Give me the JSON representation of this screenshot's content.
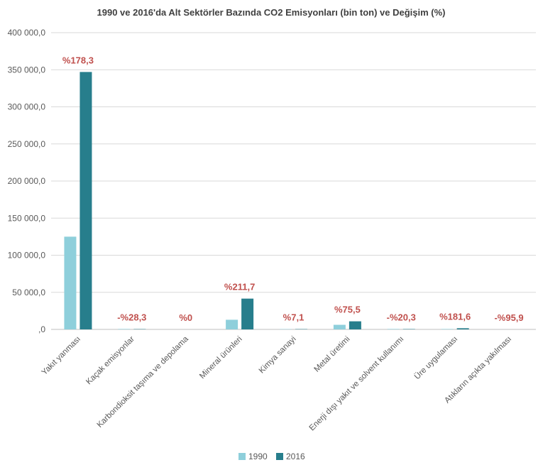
{
  "chart_data": {
    "type": "bar",
    "title": "1990 ve 2016'da Alt Sektörler Bazında CO2 Emisyonları (bin ton) ve Değişim (%)",
    "xlabel": "",
    "ylabel": "",
    "ylim": [
      0,
      400000
    ],
    "yticks": [
      0,
      50000,
      100000,
      150000,
      200000,
      250000,
      300000,
      350000,
      400000
    ],
    "ytick_labels": [
      ",0",
      "50 000,0",
      "100 000,0",
      "150 000,0",
      "200 000,0",
      "250 000,0",
      "300 000,0",
      "350 000,0",
      "400 000,0"
    ],
    "grid": true,
    "legend_position": "bottom",
    "categories": [
      "Yakıt yanması",
      "Kaçak emisyonlar",
      "Karbondioksit taşıma ve depolama",
      "Mineral ürünleri",
      "Kimya sanayi",
      "Metal üretimi",
      "Enerji dışı yakıt ve solvent kullanımı",
      "Üre uygulaması",
      "Atıkların açıkta yakılması"
    ],
    "series": [
      {
        "name": "1990",
        "color": "#8ecfdb",
        "values": [
          125000,
          600,
          0,
          13000,
          400,
          6200,
          600,
          560,
          20
        ]
      },
      {
        "name": "2016",
        "color": "#277e8c",
        "values": [
          347000,
          430,
          0,
          41500,
          430,
          10900,
          480,
          1580,
          1
        ]
      }
    ],
    "annotations": [
      "%178,3",
      "-%28,3",
      "%0",
      "%211,7",
      "%7,1",
      "%75,5",
      "-%20,3",
      "%181,6",
      "-%95,9"
    ],
    "annotation_color": "#c0504d"
  }
}
